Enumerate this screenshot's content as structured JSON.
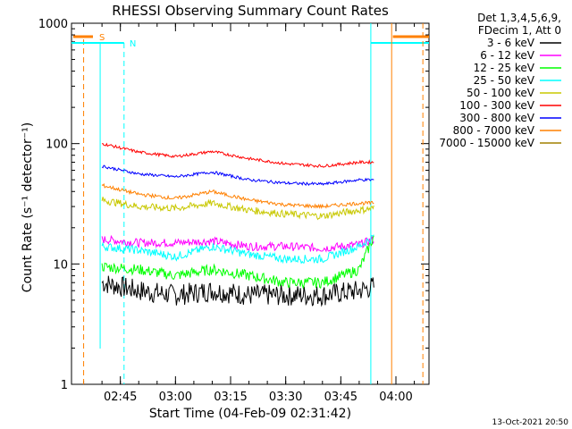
{
  "chart_data": {
    "type": "line",
    "title": "RHESSI Observing Summary Count Rates",
    "xlabel": "Start Time (04-Feb-09 02:31:42)",
    "ylabel": "Count Rate (s⁻¹ detector⁻¹)",
    "y_scale": "log",
    "ylim": [
      1,
      1000
    ],
    "xlim": [
      "02:31:42",
      "04:09:00"
    ],
    "y_ticks": [
      "1",
      "10",
      "100",
      "1000"
    ],
    "x_ticks": [
      "02:45",
      "03:00",
      "03:15",
      "03:30",
      "03:45",
      "04:00"
    ],
    "legend_header": [
      "Det 1,3,4,5,6,9,",
      "FDecim 1, Att 0"
    ],
    "legend_position": "right",
    "footer_date": "13-Oct-2021 20:50",
    "flag_labels": {
      "saa": "S",
      "night": "N"
    },
    "flag_colors": {
      "saa": "#ff8000",
      "night": "#00ffff"
    },
    "series": [
      {
        "name": "3 - 6 keV",
        "color": "#000000",
        "x": [
          "02:40",
          "02:50",
          "03:00",
          "03:10",
          "03:20",
          "03:30",
          "03:40",
          "03:50",
          "03:54"
        ],
        "values": [
          7,
          6,
          5.5,
          6,
          5.5,
          5.5,
          5.5,
          6,
          6.5
        ]
      },
      {
        "name": "6 - 12 keV",
        "color": "#ff00ff",
        "x": [
          "02:40",
          "02:50",
          "03:00",
          "03:10",
          "03:20",
          "03:30",
          "03:40",
          "03:50",
          "03:54"
        ],
        "values": [
          16,
          15,
          15,
          15.5,
          14,
          14,
          13.5,
          14.5,
          16
        ]
      },
      {
        "name": "12 - 25 keV",
        "color": "#00ff00",
        "x": [
          "02:40",
          "02:50",
          "03:00",
          "03:10",
          "03:20",
          "03:30",
          "03:40",
          "03:50",
          "03:54"
        ],
        "values": [
          9.5,
          9,
          8,
          9,
          8,
          7,
          7,
          9,
          17
        ]
      },
      {
        "name": "25 - 50 keV",
        "color": "#00ffff",
        "x": [
          "02:40",
          "02:50",
          "03:00",
          "03:10",
          "03:20",
          "03:30",
          "03:40",
          "03:50",
          "03:54"
        ],
        "values": [
          14,
          13,
          11.5,
          14,
          12,
          11,
          11,
          14,
          17
        ]
      },
      {
        "name": "50 - 100 keV",
        "color": "#c8c800",
        "x": [
          "02:40",
          "02:50",
          "03:00",
          "03:10",
          "03:20",
          "03:30",
          "03:40",
          "03:50",
          "03:54"
        ],
        "values": [
          34,
          30,
          29,
          32,
          28,
          26,
          25,
          28,
          29
        ]
      },
      {
        "name": "100 - 300 keV",
        "color": "#ff0000",
        "x": [
          "02:40",
          "02:50",
          "03:00",
          "03:10",
          "03:20",
          "03:30",
          "03:40",
          "03:50",
          "03:54"
        ],
        "values": [
          100,
          85,
          78,
          86,
          75,
          68,
          65,
          70,
          70
        ]
      },
      {
        "name": "300 - 800 keV",
        "color": "#0000ff",
        "x": [
          "02:40",
          "02:50",
          "03:00",
          "03:10",
          "03:20",
          "03:30",
          "03:40",
          "03:50",
          "03:54"
        ],
        "values": [
          65,
          56,
          53,
          58,
          50,
          47,
          46,
          50,
          50
        ]
      },
      {
        "name": "800 - 7000 keV",
        "color": "#ff8000",
        "x": [
          "02:40",
          "02:50",
          "03:00",
          "03:10",
          "03:20",
          "03:30",
          "03:40",
          "03:50",
          "03:54"
        ],
        "values": [
          45,
          38,
          35,
          40,
          34,
          31,
          30,
          32,
          32
        ]
      },
      {
        "name": "7000 - 15000 keV",
        "color": "#a08000",
        "x": [],
        "values": []
      }
    ]
  }
}
